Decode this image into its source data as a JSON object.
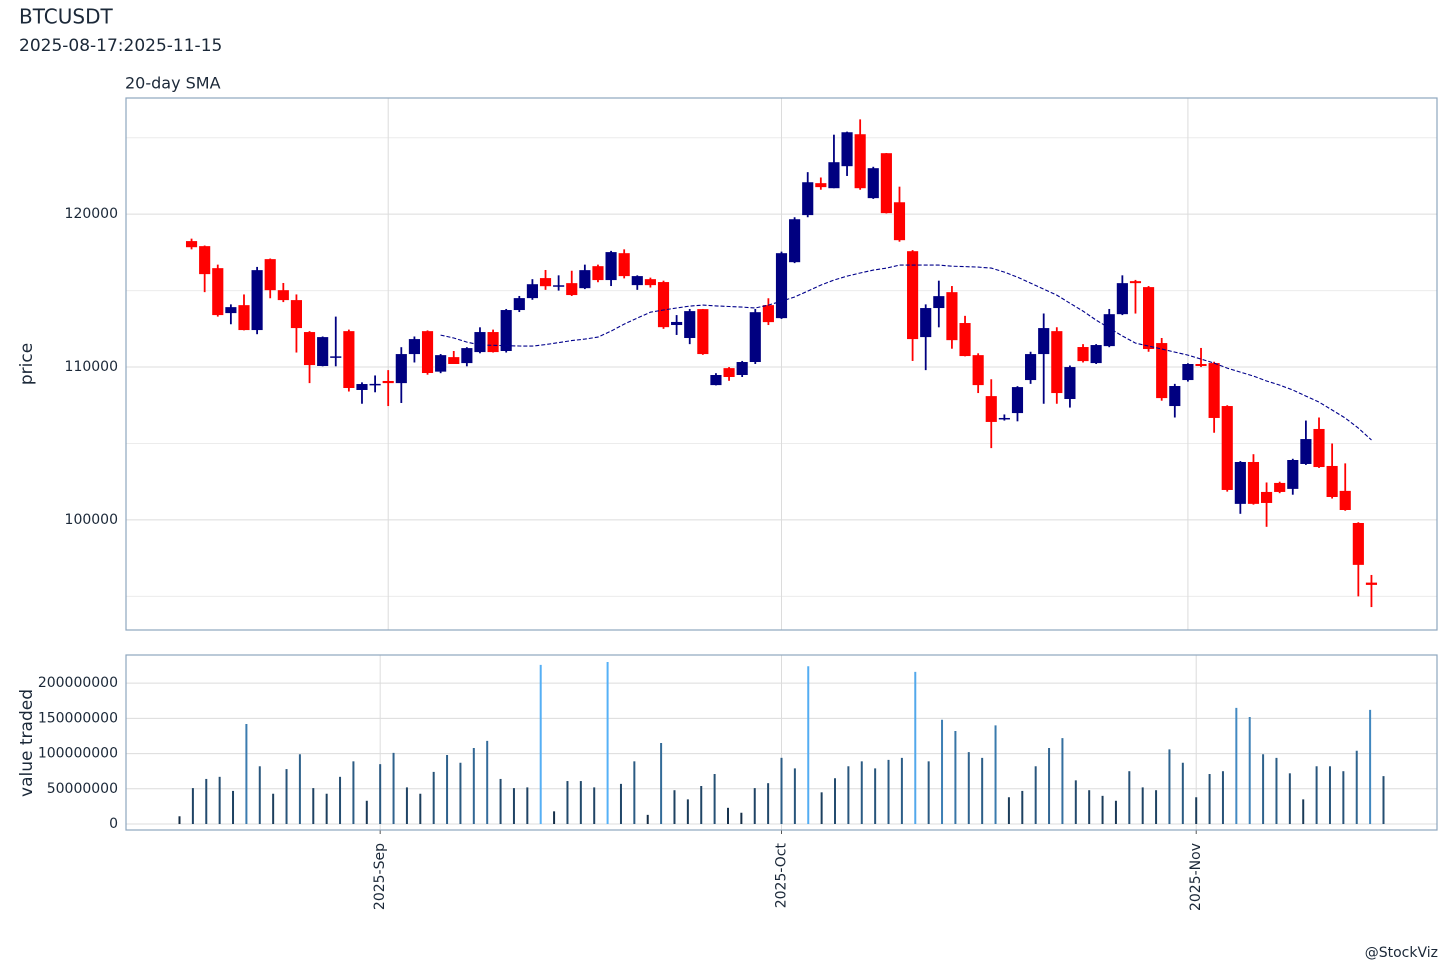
{
  "title": "BTCUSDT",
  "subtitle": "2025-08-17:2025-11-15",
  "caption": "@StockViz",
  "chart_data": [
    {
      "type": "candlestick",
      "panel_title": "20-day SMA",
      "y_label": "price",
      "up_color": "#000080",
      "down_color": "#ff0000",
      "x": [
        "2025-08-17",
        "2025-08-18",
        "2025-08-19",
        "2025-08-20",
        "2025-08-21",
        "2025-08-22",
        "2025-08-23",
        "2025-08-24",
        "2025-08-25",
        "2025-08-26",
        "2025-08-27",
        "2025-08-28",
        "2025-08-29",
        "2025-08-30",
        "2025-08-31",
        "2025-09-01",
        "2025-09-02",
        "2025-09-03",
        "2025-09-04",
        "2025-09-05",
        "2025-09-06",
        "2025-09-07",
        "2025-09-08",
        "2025-09-09",
        "2025-09-10",
        "2025-09-11",
        "2025-09-12",
        "2025-09-13",
        "2025-09-14",
        "2025-09-15",
        "2025-09-16",
        "2025-09-17",
        "2025-09-18",
        "2025-09-19",
        "2025-09-20",
        "2025-09-21",
        "2025-09-22",
        "2025-09-23",
        "2025-09-24",
        "2025-09-25",
        "2025-09-26",
        "2025-09-27",
        "2025-09-28",
        "2025-09-29",
        "2025-09-30",
        "2025-10-01",
        "2025-10-02",
        "2025-10-03",
        "2025-10-04",
        "2025-10-05",
        "2025-10-06",
        "2025-10-07",
        "2025-10-08",
        "2025-10-09",
        "2025-10-10",
        "2025-10-11",
        "2025-10-12",
        "2025-10-13",
        "2025-10-14",
        "2025-10-15",
        "2025-10-16",
        "2025-10-17",
        "2025-10-18",
        "2025-10-19",
        "2025-10-20",
        "2025-10-21",
        "2025-10-22",
        "2025-10-23",
        "2025-10-24",
        "2025-10-25",
        "2025-10-26",
        "2025-10-27",
        "2025-10-28",
        "2025-10-29",
        "2025-10-30",
        "2025-10-31",
        "2025-11-01",
        "2025-11-02",
        "2025-11-03",
        "2025-11-04",
        "2025-11-05",
        "2025-11-06",
        "2025-11-07",
        "2025-11-08",
        "2025-11-09",
        "2025-11-10",
        "2025-11-11",
        "2025-11-12",
        "2025-11-13",
        "2025-11-14",
        "2025-11-15"
      ],
      "open": [
        118240,
        117910,
        116470,
        113530,
        114050,
        112420,
        117060,
        115030,
        114380,
        112290,
        110070,
        110650,
        112350,
        108500,
        108850,
        109090,
        108950,
        110850,
        112350,
        109700,
        110650,
        110260,
        110980,
        112290,
        111050,
        113730,
        114510,
        115820,
        115300,
        115490,
        115160,
        116600,
        115690,
        117450,
        115360,
        115750,
        115560,
        112750,
        111900,
        113790,
        108820,
        109930,
        109480,
        110330,
        114050,
        113200,
        116860,
        119940,
        122030,
        121700,
        123140,
        125230,
        121050,
        123990,
        120780,
        117580,
        111960,
        113860,
        114900,
        112880,
        110780,
        108100,
        106600,
        106990,
        109150,
        110850,
        112350,
        107910,
        111310,
        110260,
        111370,
        113460,
        115620,
        115230,
        111570,
        107450,
        109150,
        110200,
        110260,
        107450,
        101050,
        103790,
        101830,
        102420,
        102030,
        103660,
        105950,
        103530,
        101900,
        99800,
        95900
      ],
      "high": [
        118400,
        117950,
        116700,
        114100,
        114750,
        116550,
        117100,
        115500,
        114750,
        112350,
        112000,
        113300,
        112450,
        109000,
        109450,
        109800,
        111300,
        112000,
        112400,
        110850,
        111050,
        111300,
        112600,
        112450,
        113800,
        114650,
        115750,
        116350,
        116000,
        116300,
        116700,
        116700,
        117600,
        117700,
        116000,
        115850,
        115650,
        113400,
        113800,
        113800,
        109600,
        110000,
        110400,
        113800,
        114500,
        117550,
        119800,
        122750,
        122400,
        125200,
        125400,
        126200,
        123100,
        124000,
        121800,
        117650,
        114100,
        115650,
        115300,
        113350,
        110900,
        109200,
        106900,
        108750,
        111000,
        113500,
        112600,
        110100,
        111500,
        111500,
        113800,
        116000,
        115700,
        115300,
        111900,
        108900,
        110250,
        111250,
        110350,
        107500,
        103850,
        104300,
        102450,
        102500,
        104000,
        106500,
        106700,
        105000,
        103700,
        99850,
        96400
      ],
      "low": [
        117700,
        114900,
        113300,
        112800,
        112400,
        112150,
        114500,
        114250,
        110950,
        108950,
        110050,
        110050,
        108400,
        107600,
        108350,
        107450,
        107650,
        110300,
        109500,
        109600,
        110200,
        110050,
        110900,
        110950,
        110950,
        113600,
        114400,
        115050,
        115000,
        114650,
        115100,
        115550,
        115300,
        115800,
        115050,
        115200,
        112500,
        112100,
        111500,
        110800,
        108800,
        109100,
        109350,
        110200,
        112750,
        113150,
        116800,
        119800,
        121600,
        121700,
        122500,
        121600,
        121000,
        120050,
        118200,
        110400,
        109800,
        112600,
        111200,
        110700,
        108300,
        104700,
        106500,
        106450,
        108900,
        107600,
        107600,
        107350,
        110300,
        110200,
        111300,
        113400,
        113500,
        111000,
        107800,
        106700,
        109050,
        110000,
        105700,
        101850,
        100400,
        101000,
        99550,
        101750,
        101650,
        103600,
        103400,
        101400,
        100600,
        95000,
        94300
      ],
      "close": [
        117840,
        116080,
        113400,
        113920,
        112420,
        116340,
        115030,
        114380,
        112550,
        110130,
        111960,
        110700,
        108630,
        108890,
        108900,
        108950,
        110850,
        111830,
        109610,
        110780,
        110200,
        111240,
        112290,
        110980,
        113730,
        114510,
        115420,
        115290,
        115350,
        114710,
        116340,
        115690,
        117520,
        115950,
        115950,
        115360,
        112610,
        112950,
        113660,
        110850,
        109480,
        109350,
        110330,
        113590,
        112940,
        117450,
        119670,
        122090,
        121770,
        123400,
        125360,
        121700,
        123010,
        120070,
        118300,
        111830,
        113860,
        114640,
        111760,
        110720,
        108820,
        106410,
        106670,
        108690,
        110850,
        112550,
        108300,
        110000,
        110390,
        111440,
        113460,
        115490,
        115490,
        111180,
        107970,
        108760,
        110200,
        110070,
        106670,
        101960,
        103790,
        101050,
        101110,
        101830,
        103920,
        105290,
        103460,
        101500,
        100650,
        97060,
        95750
      ],
      "sma": {
        "color": "#00008b",
        "values": [
          null,
          null,
          null,
          null,
          null,
          null,
          null,
          null,
          null,
          null,
          null,
          null,
          null,
          null,
          null,
          null,
          null,
          null,
          null,
          112090,
          111900,
          111630,
          111440,
          111420,
          111400,
          111380,
          111370,
          111470,
          111600,
          111730,
          111830,
          111960,
          112350,
          112810,
          113200,
          113590,
          113730,
          113860,
          113990,
          114050,
          114000,
          113960,
          113920,
          113860,
          114050,
          114310,
          114580,
          114970,
          115360,
          115690,
          115950,
          116150,
          116340,
          116470,
          116670,
          116670,
          116670,
          116670,
          116600,
          116570,
          116540,
          116470,
          116210,
          115880,
          115490,
          115100,
          114710,
          114180,
          113660,
          113070,
          112550,
          112030,
          111570,
          111370,
          111180,
          110980,
          110780,
          110520,
          110260,
          109930,
          109670,
          109410,
          109090,
          108820,
          108500,
          108100,
          107710,
          107190,
          106670,
          106010,
          105230
        ]
      },
      "xlim": [
        "2025-08-12",
        "2025-11-20"
      ],
      "ylim": [
        92800,
        127600
      ],
      "yticks": [
        100000,
        110000,
        120000
      ],
      "minor_yticks": [
        95000,
        105000,
        115000,
        125000
      ],
      "grid": true
    },
    {
      "type": "bar",
      "y_label": "value traded",
      "color_scale": [
        "#132B43",
        "#56B1F7"
      ],
      "values": [
        11000000,
        51000000,
        64000000,
        67000000,
        47000000,
        142000000,
        82000000,
        43000000,
        78000000,
        99000000,
        51000000,
        43000000,
        67000000,
        89000000,
        33000000,
        85000000,
        101000000,
        52000000,
        43000000,
        74000000,
        98000000,
        87000000,
        108000000,
        118000000,
        64000000,
        51000000,
        52000000,
        226000000,
        18000000,
        61000000,
        61000000,
        52000000,
        230000000,
        57000000,
        89000000,
        13000000,
        115000000,
        48000000,
        35000000,
        54000000,
        71000000,
        23000000,
        16000000,
        51000000,
        58000000,
        94000000,
        79000000,
        224000000,
        45000000,
        65000000,
        82000000,
        89000000,
        79000000,
        91000000,
        94000000,
        216000000,
        89000000,
        148000000,
        132000000,
        102000000,
        94000000,
        140000000,
        38000000,
        47000000,
        82000000,
        108000000,
        122000000,
        62000000,
        48000000,
        40000000,
        33000000,
        75000000,
        52000000,
        48000000,
        106000000,
        87000000,
        38000000,
        71000000,
        75000000,
        165000000,
        152000000,
        99000000,
        94000000,
        72000000,
        35000000,
        82000000,
        82000000,
        75000000,
        104000000,
        162000000,
        68000000
      ],
      "xlim": [
        "2025-08-13",
        "2025-11-19"
      ],
      "ylim": [
        -8500000,
        240000000
      ],
      "yticks": [
        0,
        50000000,
        100000000,
        150000000,
        200000000
      ],
      "xticks": [
        {
          "value": "2025-09-01",
          "label": "2025-Sep"
        },
        {
          "value": "2025-10-01",
          "label": "2025-Oct"
        },
        {
          "value": "2025-11-01",
          "label": "2025-Nov"
        }
      ],
      "grid": true
    }
  ]
}
